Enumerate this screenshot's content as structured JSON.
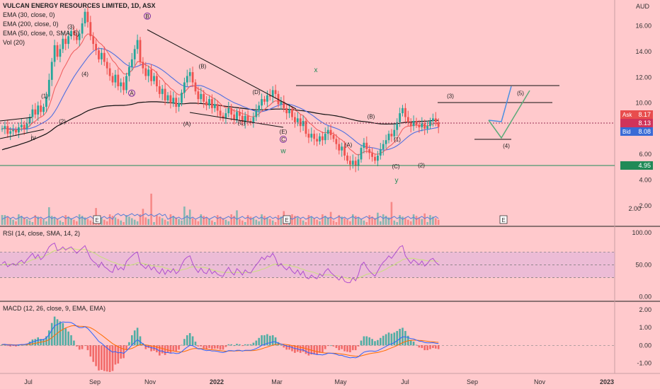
{
  "header": {
    "title": "VULCAN ENERGY RESOURCES LIMITED, 1D, ASX",
    "currency": "AUD"
  },
  "legend": {
    "ema30": "EMA (30, close, 0)",
    "ema200": "EMA (200, close, 0)",
    "ema50": "EMA (50, close, 0, SMA, 5)",
    "vol": "Vol (20)",
    "rsi": "RSI (14, close, SMA, 14, 2)",
    "macd": "MACD (12, 26, close, 9, EMA, EMA)"
  },
  "quote": {
    "ask_label": "Ask",
    "ask": "8.17",
    "last": "8.13",
    "bid_label": "Bid",
    "bid": "8.08",
    "support": "4.95"
  },
  "colors": {
    "background": "#ffc9cc",
    "up": "#26a69a",
    "down": "#ef5350",
    "ema30": "#f06262",
    "ema50": "#4f6fe0",
    "ema200": "#111111",
    "rsi": "#b04fd0",
    "rsi_ma": "#c9e07a",
    "macd": "#2962ff",
    "signal": "#ff6d00",
    "support": "#1f8a57",
    "projection_up": "#4a90e2",
    "projection_alt": "#5aaa78"
  },
  "chart_data": [
    {
      "type": "candlestick",
      "title": "VULCAN ENERGY RESOURCES LIMITED, 1D, ASX",
      "unit": "AUD",
      "x_ticks": [
        "Jul",
        "Sep",
        "Nov",
        "2022",
        "Mar",
        "May",
        "Jul",
        "Sep",
        "Nov",
        "2023"
      ],
      "x_tick_index": [
        8,
        30,
        50,
        72,
        92,
        113,
        134,
        156,
        177,
        198
      ],
      "y_ticks": [
        "16.00",
        "14.00",
        "12.00",
        "10.00",
        "8.00",
        "6.00",
        "4.00",
        "2.00"
      ],
      "y_tick_values": [
        16,
        14,
        12,
        10,
        8,
        6,
        4,
        2
      ],
      "ylim": [
        0.5,
        17.8
      ],
      "close": [
        8.0,
        8.2,
        7.6,
        7.8,
        7.9,
        7.7,
        8.1,
        8.3,
        8.0,
        8.4,
        8.9,
        9.5,
        9.1,
        9.8,
        9.3,
        9.7,
        10.5,
        11.8,
        13.2,
        14.5,
        13.6,
        14.2,
        15.0,
        14.6,
        15.2,
        15.6,
        15.3,
        14.9,
        15.4,
        16.2,
        17.1,
        16.3,
        15.2,
        14.6,
        14.1,
        13.4,
        13.9,
        13.2,
        12.7,
        12.1,
        11.6,
        12.2,
        11.3,
        11.6,
        11.0,
        12.1,
        12.8,
        13.4,
        14.2,
        14.9,
        13.2,
        12.7,
        12.1,
        12.6,
        11.7,
        12.1,
        11.3,
        10.7,
        11.1,
        10.2,
        10.6,
        10.0,
        10.4,
        9.7,
        10.0,
        10.8,
        11.6,
        12.1,
        12.4,
        11.6,
        10.9,
        10.3,
        10.7,
        10.1,
        9.8,
        10.3,
        9.6,
        9.9,
        9.4,
        9.0,
        8.8,
        9.2,
        9.6,
        9.1,
        8.7,
        9.3,
        9.0,
        8.5,
        9.0,
        8.6,
        8.5,
        8.9,
        9.4,
        9.8,
        10.3,
        10.1,
        10.6,
        10.5,
        11.0,
        10.7,
        9.9,
        10.1,
        9.6,
        9.2,
        9.5,
        8.9,
        8.5,
        8.8,
        8.2,
        8.6,
        7.6,
        7.3,
        7.6,
        7.2,
        7.0,
        7.4,
        7.1,
        7.6,
        7.9,
        7.5,
        7.2,
        6.8,
        6.3,
        6.6,
        5.9,
        5.5,
        5.2,
        5.5,
        5.1,
        5.6,
        6.5,
        6.9,
        6.4,
        6.1,
        5.8,
        5.5,
        5.9,
        6.4,
        6.8,
        7.1,
        7.6,
        7.4,
        7.9,
        8.5,
        9.2,
        9.6,
        8.9,
        8.5,
        8.2,
        8.6,
        8.3,
        8.1,
        8.4,
        8.0,
        8.2,
        8.6,
        8.8,
        8.5,
        8.13
      ],
      "volume_max_label": "2.00",
      "annotations": [
        "(3)",
        "(1)",
        "(2)",
        "(4)",
        "iv",
        "B",
        "A",
        "(B)",
        "(A)",
        "(C)",
        "(E)",
        "(D)",
        "C",
        "w",
        "x",
        "(A)",
        "(B)",
        "(C)",
        "y",
        "(1)",
        "(2)",
        "(3)",
        "(4)",
        "(5)"
      ],
      "annotation_values": [
        15.8,
        10.4,
        8.4,
        12.1,
        7.1,
        16.6,
        10.6,
        12.7,
        8.2,
        8.3,
        7.6,
        10.7,
        7.0,
        6.1,
        12.4,
        6.6,
        8.8,
        4.9,
        3.8,
        7.0,
        5.0,
        10.4,
        6.5,
        10.6
      ]
    },
    {
      "type": "line",
      "title": "RSI (14, close, SMA, 14, 2)",
      "y_ticks": [
        "100.00",
        "50.00",
        "0.00"
      ],
      "y_tick_values": [
        100,
        50,
        0
      ],
      "bands": [
        70,
        50,
        30
      ],
      "ylim": [
        -5,
        108
      ],
      "values": [
        52,
        55,
        47,
        50,
        52,
        49,
        54,
        57,
        52,
        58,
        63,
        68,
        60,
        66,
        58,
        62,
        70,
        78,
        82,
        84,
        72,
        74,
        78,
        73,
        76,
        78,
        73,
        68,
        72,
        76,
        80,
        70,
        60,
        55,
        52,
        46,
        54,
        47,
        44,
        40,
        38,
        50,
        42,
        46,
        42,
        55,
        60,
        64,
        68,
        70,
        52,
        48,
        44,
        50,
        42,
        47,
        40,
        36,
        44,
        35,
        42,
        38,
        44,
        36,
        40,
        50,
        58,
        62,
        64,
        52,
        44,
        38,
        45,
        38,
        36,
        44,
        36,
        40,
        35,
        33,
        32,
        40,
        46,
        38,
        34,
        44,
        40,
        34,
        42,
        38,
        37,
        44,
        50,
        55,
        62,
        58,
        64,
        62,
        68,
        60,
        48,
        52,
        46,
        42,
        47,
        40,
        36,
        42,
        34,
        40,
        30,
        28,
        34,
        30,
        28,
        36,
        32,
        40,
        44,
        38,
        34,
        30,
        26,
        32,
        24,
        22,
        22,
        30,
        25,
        35,
        50,
        54,
        46,
        40,
        36,
        32,
        40,
        48,
        54,
        58,
        64,
        60,
        66,
        72,
        78,
        80,
        64,
        58,
        52,
        58,
        54,
        50,
        56,
        48,
        52,
        58,
        60,
        54,
        50
      ],
      "ma": [
        50,
        51,
        51,
        51,
        51,
        51,
        52,
        53,
        53,
        54,
        56,
        58,
        59,
        61,
        62,
        63,
        65,
        67,
        70,
        72,
        73,
        74,
        75,
        75,
        75,
        75,
        75,
        74,
        74,
        74,
        74,
        73,
        71,
        69,
        67,
        64,
        62,
        60,
        58,
        56,
        54,
        53,
        51,
        50,
        49,
        49,
        49,
        50,
        51,
        53,
        53,
        52,
        51,
        50,
        49,
        48,
        48,
        47,
        47,
        45,
        44,
        43,
        42,
        42,
        41,
        42,
        43,
        44,
        46,
        47,
        47,
        46,
        46,
        46,
        45,
        44,
        42,
        41,
        40,
        39,
        38,
        38,
        38,
        38,
        38,
        38,
        38,
        38,
        38,
        38,
        38,
        39,
        40,
        41,
        43,
        44,
        46,
        48,
        50,
        51,
        51,
        51,
        50,
        50,
        49,
        48,
        47,
        46,
        44,
        43,
        41,
        40,
        39,
        38,
        36,
        35,
        34,
        34,
        34,
        34,
        33,
        33,
        32,
        31,
        30,
        29,
        28,
        28,
        28,
        29,
        31,
        33,
        35,
        36,
        37,
        37,
        38,
        39,
        41,
        43,
        46,
        48,
        50,
        53,
        55,
        58,
        59,
        60,
        60,
        60,
        59,
        58,
        58,
        57,
        56,
        56,
        56,
        56,
        55
      ]
    },
    {
      "type": "line",
      "title": "MACD (12, 26, close, 9, EMA, EMA)",
      "y_ticks": [
        "2.00",
        "1.00",
        "0.00",
        "-1.00"
      ],
      "y_tick_values": [
        2,
        1,
        0,
        -1
      ],
      "ylim": [
        -1.5,
        2.4
      ],
      "series": [
        {
          "name": "MACD",
          "values": [
            0.05,
            0.06,
            0.03,
            0.02,
            0.02,
            0.01,
            0.03,
            0.05,
            0.05,
            0.08,
            0.13,
            0.2,
            0.23,
            0.3,
            0.3,
            0.33,
            0.42,
            0.6,
            0.85,
            1.1,
            1.18,
            1.25,
            1.32,
            1.3,
            1.3,
            1.28,
            1.2,
            1.08,
            1.0,
            1.0,
            1.05,
            0.95,
            0.78,
            0.6,
            0.42,
            0.22,
            0.12,
            -0.02,
            -0.15,
            -0.28,
            -0.38,
            -0.35,
            -0.42,
            -0.4,
            -0.45,
            -0.32,
            -0.15,
            0.02,
            0.18,
            0.32,
            0.2,
            0.08,
            -0.05,
            -0.05,
            -0.14,
            -0.15,
            -0.22,
            -0.32,
            -0.32,
            -0.4,
            -0.4,
            -0.44,
            -0.42,
            -0.46,
            -0.45,
            -0.36,
            -0.22,
            -0.1,
            0.0,
            -0.02,
            -0.1,
            -0.2,
            -0.2,
            -0.26,
            -0.3,
            -0.28,
            -0.32,
            -0.32,
            -0.34,
            -0.38,
            -0.4,
            -0.36,
            -0.3,
            -0.3,
            -0.32,
            -0.28,
            -0.28,
            -0.32,
            -0.28,
            -0.28,
            -0.28,
            -0.24,
            -0.18,
            -0.1,
            0.0,
            0.05,
            0.12,
            0.14,
            0.2,
            0.2,
            0.12,
            0.08,
            0.02,
            -0.04,
            -0.06,
            -0.12,
            -0.18,
            -0.2,
            -0.26,
            -0.26,
            -0.34,
            -0.42,
            -0.44,
            -0.48,
            -0.52,
            -0.52,
            -0.54,
            -0.5,
            -0.44,
            -0.44,
            -0.46,
            -0.5,
            -0.56,
            -0.56,
            -0.62,
            -0.66,
            -0.7,
            -0.68,
            -0.7,
            -0.64,
            -0.5,
            -0.38,
            -0.34,
            -0.32,
            -0.32,
            -0.34,
            -0.3,
            -0.22,
            -0.14,
            -0.06,
            0.04,
            0.08,
            0.16,
            0.26,
            0.38,
            0.48,
            0.48,
            0.44,
            0.38,
            0.36,
            0.3,
            0.24,
            0.22,
            0.16,
            0.14,
            0.14,
            0.15,
            0.12,
            0.1
          ]
        },
        {
          "name": "Signal",
          "values": [
            0.03,
            0.04,
            0.04,
            0.04,
            0.03,
            0.03,
            0.03,
            0.03,
            0.04,
            0.05,
            0.06,
            0.09,
            0.11,
            0.15,
            0.18,
            0.21,
            0.25,
            0.32,
            0.43,
            0.56,
            0.69,
            0.8,
            0.9,
            0.98,
            1.04,
            1.09,
            1.11,
            1.1,
            1.08,
            1.07,
            1.06,
            1.04,
            0.99,
            0.91,
            0.81,
            0.69,
            0.58,
            0.46,
            0.34,
            0.22,
            0.1,
            0.01,
            -0.08,
            -0.15,
            -0.21,
            -0.23,
            -0.21,
            -0.17,
            -0.1,
            -0.01,
            0.03,
            0.04,
            0.02,
            0.0,
            -0.03,
            -0.05,
            -0.09,
            -0.13,
            -0.17,
            -0.22,
            -0.26,
            -0.3,
            -0.32,
            -0.35,
            -0.37,
            -0.37,
            -0.34,
            -0.29,
            -0.23,
            -0.19,
            -0.17,
            -0.18,
            -0.18,
            -0.2,
            -0.22,
            -0.23,
            -0.25,
            -0.26,
            -0.28,
            -0.3,
            -0.32,
            -0.33,
            -0.32,
            -0.32,
            -0.32,
            -0.31,
            -0.3,
            -0.31,
            -0.3,
            -0.3,
            -0.3,
            -0.29,
            -0.27,
            -0.24,
            -0.19,
            -0.14,
            -0.09,
            -0.04,
            0.01,
            0.05,
            0.06,
            0.07,
            0.06,
            0.04,
            0.02,
            -0.01,
            -0.04,
            -0.08,
            -0.12,
            -0.14,
            -0.18,
            -0.23,
            -0.27,
            -0.31,
            -0.35,
            -0.38,
            -0.41,
            -0.43,
            -0.43,
            -0.44,
            -0.44,
            -0.45,
            -0.47,
            -0.49,
            -0.51,
            -0.54,
            -0.57,
            -0.59,
            -0.61,
            -0.62,
            -0.59,
            -0.55,
            -0.51,
            -0.47,
            -0.44,
            -0.42,
            -0.4,
            -0.36,
            -0.32,
            -0.27,
            -0.2,
            -0.14,
            -0.08,
            -0.01,
            0.07,
            0.15,
            0.21,
            0.26,
            0.28,
            0.29,
            0.29,
            0.28,
            0.27,
            0.25,
            0.23,
            0.21,
            0.2,
            0.18,
            0.17
          ]
        }
      ]
    }
  ]
}
